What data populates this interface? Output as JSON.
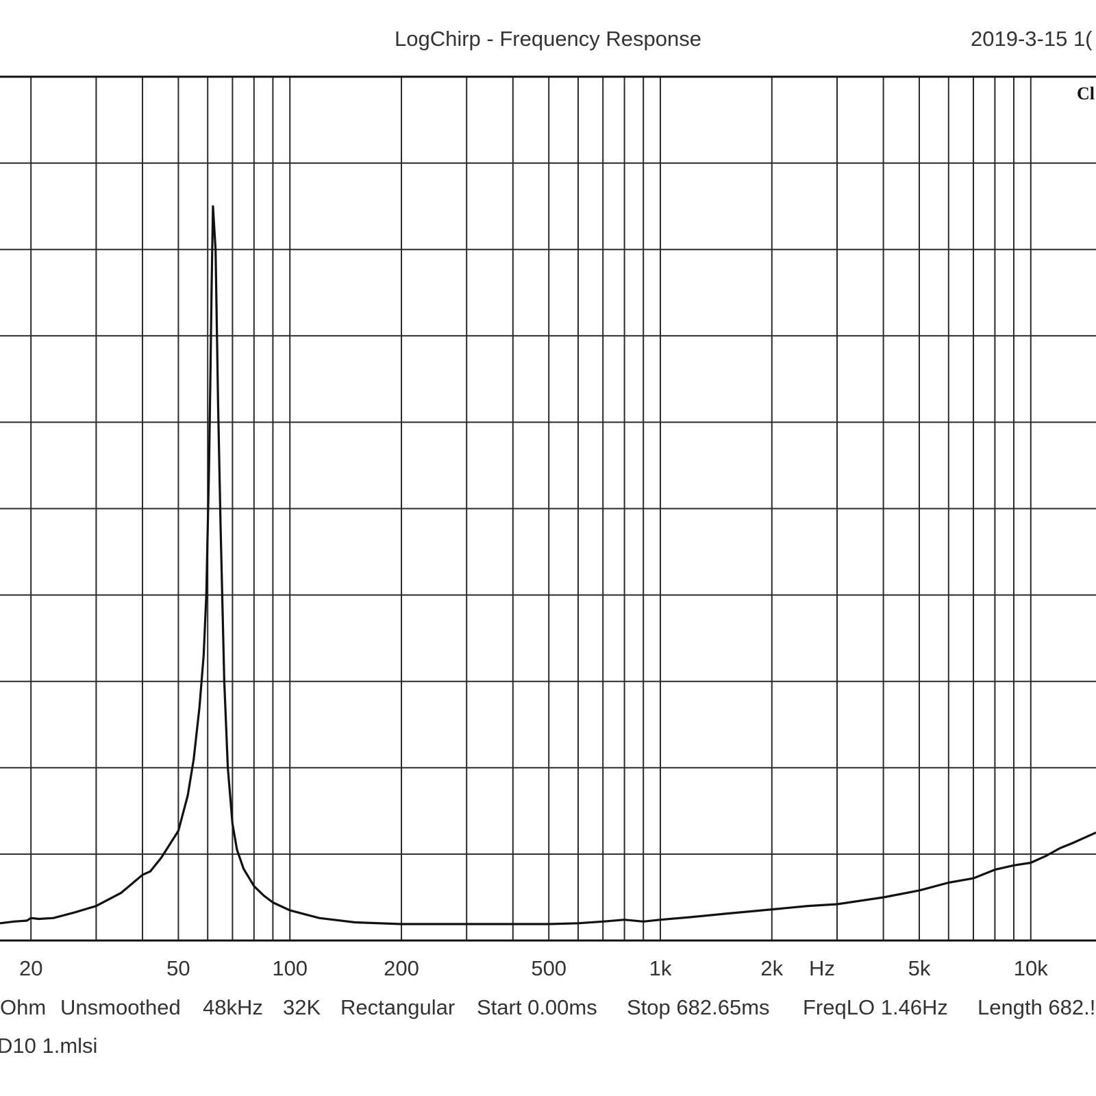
{
  "header": {
    "title": "LogChirp - Frequency Response",
    "timestamp": "2019-3-15 1(",
    "corner_label": "Cl"
  },
  "footer": {
    "info_items": [
      "Ohm",
      "Unsmoothed",
      "48kHz",
      "32K",
      "Rectangular",
      "Start 0.00ms",
      "Stop 682.65ms",
      "FreqLO 1.46Hz",
      "Length 682.!"
    ],
    "filename": "D10 1.mlsi"
  },
  "chart_data": {
    "type": "line",
    "title": "LogChirp - Frequency Response",
    "xlabel": "Hz",
    "ylabel": "",
    "xscale": "log",
    "xlim": [
      16.5,
      15000
    ],
    "ylim": [
      0,
      100
    ],
    "grid": true,
    "x_ticks": [
      {
        "value": 20,
        "label": "20"
      },
      {
        "value": 50,
        "label": "50"
      },
      {
        "value": 100,
        "label": "100"
      },
      {
        "value": 200,
        "label": "200"
      },
      {
        "value": 500,
        "label": "500"
      },
      {
        "value": 1000,
        "label": "1k"
      },
      {
        "value": 2000,
        "label": "2k"
      },
      {
        "value": 5000,
        "label": "5k"
      },
      {
        "value": 10000,
        "label": "10k"
      }
    ],
    "x_gridlines": [
      20,
      30,
      40,
      50,
      60,
      70,
      80,
      90,
      100,
      200,
      300,
      400,
      500,
      600,
      700,
      800,
      900,
      1000,
      2000,
      3000,
      4000,
      5000,
      6000,
      7000,
      8000,
      9000,
      10000
    ],
    "y_gridlines": [
      0,
      10,
      20,
      30,
      40,
      50,
      60,
      70,
      80,
      90,
      100
    ],
    "series": [
      {
        "x": [
          16.5,
          18,
          19.5,
          20,
          21,
          23,
          26,
          30,
          35,
          40,
          42,
          45,
          50,
          53,
          55,
          57,
          58.5,
          59.5,
          60.5,
          61,
          61.5,
          62,
          63,
          64,
          65,
          66.5,
          68,
          70,
          72,
          75,
          80,
          85,
          90,
          100,
          120,
          150,
          200,
          300,
          400,
          500,
          600,
          700,
          800,
          900,
          1000,
          1200,
          1500,
          2000,
          2500,
          3000,
          4000,
          5000,
          6000,
          7000,
          8000,
          9000,
          10000,
          11000,
          12000,
          13000,
          15000
        ],
        "y": [
          2,
          2.2,
          2.3,
          2.6,
          2.5,
          2.6,
          3.2,
          4.0,
          5.5,
          7.6,
          8.0,
          9.6,
          12.7,
          16.8,
          21.0,
          27.0,
          33.0,
          40.0,
          55.0,
          65.0,
          76.0,
          85.0,
          80.0,
          62.0,
          48.0,
          30.0,
          20.0,
          13.5,
          10.5,
          8.3,
          6.3,
          5.2,
          4.4,
          3.5,
          2.6,
          2.1,
          1.9,
          1.9,
          1.9,
          1.9,
          2.0,
          2.2,
          2.4,
          2.2,
          2.4,
          2.7,
          3.1,
          3.6,
          4.0,
          4.2,
          5.0,
          5.8,
          6.7,
          7.2,
          8.2,
          8.7,
          9.0,
          9.8,
          10.7,
          11.3,
          12.5
        ]
      }
    ]
  }
}
